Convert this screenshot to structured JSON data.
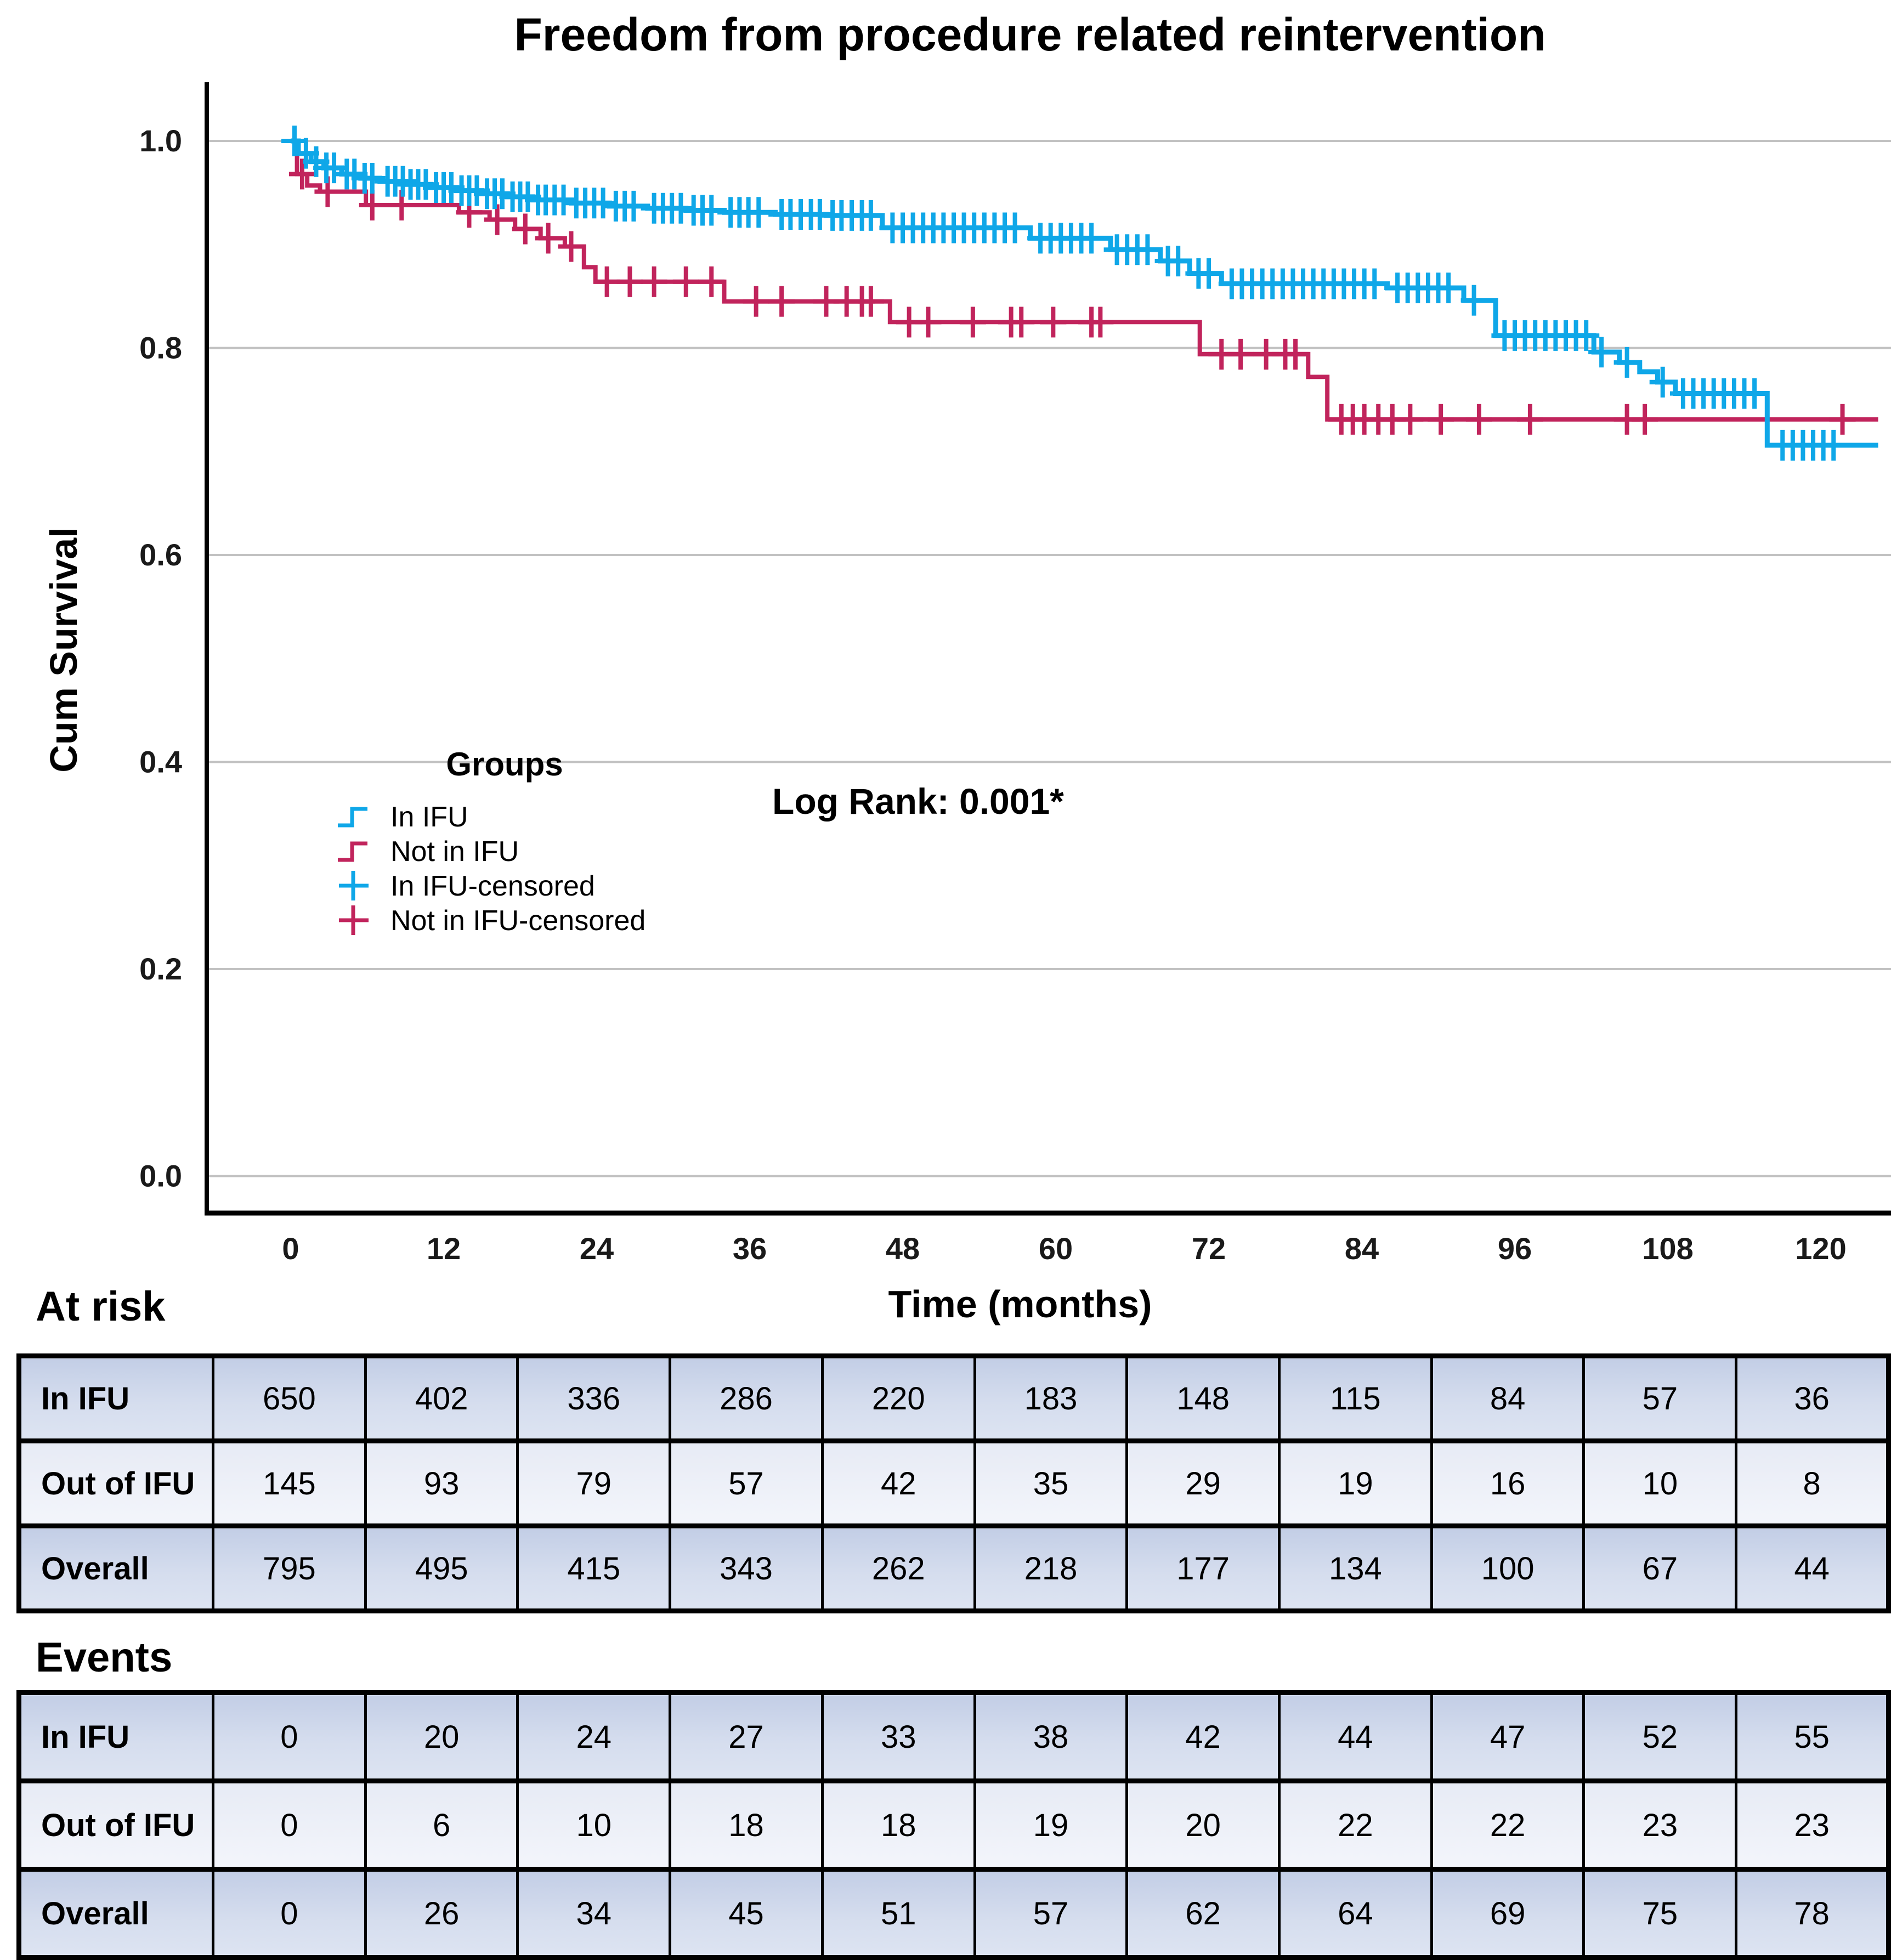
{
  "chart_data": {
    "type": "line",
    "subtype": "kaplan-meier-step",
    "title": "Freedom from procedure related reintervention",
    "xlabel": "Time (months)",
    "ylabel": "Cum Survival",
    "annotation": "Log Rank: 0.001*",
    "legend_title": "Groups",
    "x_ticks": [
      0,
      12,
      24,
      36,
      48,
      60,
      72,
      84,
      96,
      108,
      120
    ],
    "y_ticks": [
      1.0,
      0.8,
      0.6,
      0.4,
      0.2,
      0.0
    ],
    "xlim": [
      0,
      124.5
    ],
    "ylim": [
      0.0,
      1.0
    ],
    "grid": true,
    "colors": {
      "in_ifu": "#0FA7E8",
      "not_in_ifu": "#C1245C",
      "gridline": "#c2c2c2",
      "axis": "#000000"
    },
    "legend_items": [
      {
        "label": "In IFU",
        "symbol": "step",
        "color": "#0FA7E8"
      },
      {
        "label": "Not in IFU",
        "symbol": "step",
        "color": "#C1245C"
      },
      {
        "label": "In IFU-censored",
        "symbol": "plus",
        "color": "#0FA7E8"
      },
      {
        "label": "Not in IFU-censored",
        "symbol": "plus",
        "color": "#C1245C"
      }
    ],
    "series": [
      {
        "name": "In IFU",
        "color": "#0FA7E8",
        "steps": [
          [
            0,
            1.0
          ],
          [
            0.6,
            0.988
          ],
          [
            1.6,
            0.98
          ],
          [
            2.6,
            0.974
          ],
          [
            4.0,
            0.968
          ],
          [
            5.5,
            0.964
          ],
          [
            7.0,
            0.961
          ],
          [
            9.0,
            0.958
          ],
          [
            11,
            0.955
          ],
          [
            13,
            0.952
          ],
          [
            15,
            0.949
          ],
          [
            17,
            0.946
          ],
          [
            19,
            0.943
          ],
          [
            22,
            0.94
          ],
          [
            25,
            0.937
          ],
          [
            28,
            0.935
          ],
          [
            31,
            0.933
          ],
          [
            34,
            0.931
          ],
          [
            38,
            0.929
          ],
          [
            42,
            0.928
          ],
          [
            46.4,
            0.916
          ],
          [
            58,
            0.906
          ],
          [
            64.3,
            0.895
          ],
          [
            68.2,
            0.884
          ],
          [
            70.5,
            0.872
          ],
          [
            73,
            0.862
          ],
          [
            86,
            0.858
          ],
          [
            92,
            0.846
          ],
          [
            94.5,
            0.812
          ],
          [
            102.2,
            0.796
          ],
          [
            104.2,
            0.786
          ],
          [
            105.8,
            0.777
          ],
          [
            107.2,
            0.767
          ],
          [
            108.6,
            0.756
          ],
          [
            115.8,
            0.706
          ]
        ],
        "end_time": 124.5,
        "censors": [
          0.3,
          1.2,
          2.0,
          2.8,
          3.4,
          4.4,
          5.0,
          5.8,
          6.4,
          7.6,
          8.2,
          8.8,
          9.4,
          10.0,
          10.6,
          11.4,
          12.0,
          12.6,
          13.4,
          14.0,
          14.6,
          15.4,
          16.0,
          16.6,
          17.4,
          18.0,
          18.6,
          19.4,
          20.0,
          20.7,
          21.4,
          22.4,
          23.1,
          23.8,
          24.5,
          25.5,
          26.2,
          26.9,
          28.5,
          29.2,
          29.9,
          30.6,
          31.6,
          32.3,
          33.0,
          34.5,
          35.2,
          35.9,
          36.7,
          38.5,
          39.2,
          40.0,
          40.8,
          41.5,
          42.5,
          43.2,
          44.0,
          44.8,
          45.5,
          47.2,
          48.0,
          48.8,
          49.6,
          50.4,
          51.2,
          52.0,
          52.8,
          53.6,
          54.4,
          55.2,
          56.0,
          56.8,
          58.8,
          59.6,
          60.4,
          61.2,
          62.0,
          62.8,
          64.8,
          65.6,
          66.4,
          67.2,
          68.8,
          69.6,
          71.2,
          72.0,
          73.8,
          74.6,
          75.4,
          76.2,
          77.0,
          77.8,
          78.6,
          79.4,
          80.2,
          81.0,
          81.8,
          82.6,
          83.4,
          84.2,
          85.0,
          86.8,
          87.6,
          88.4,
          89.2,
          90.0,
          90.8,
          92.8,
          95.2,
          96.0,
          96.8,
          97.6,
          98.4,
          99.2,
          100.0,
          100.8,
          101.6,
          102.8,
          104.8,
          107.6,
          109.2,
          110.0,
          110.8,
          111.6,
          112.4,
          113.2,
          114.0,
          114.8,
          117.0,
          117.8,
          118.6,
          119.4,
          120.2,
          121.0
        ]
      },
      {
        "name": "Not in IFU",
        "color": "#C1245C",
        "steps": [
          [
            0,
            1.0
          ],
          [
            0.5,
            0.968
          ],
          [
            1.3,
            0.957
          ],
          [
            2.3,
            0.951
          ],
          [
            5.9,
            0.938
          ],
          [
            13.2,
            0.931
          ],
          [
            15.6,
            0.924
          ],
          [
            17.6,
            0.915
          ],
          [
            19.6,
            0.906
          ],
          [
            21.5,
            0.898
          ],
          [
            23.0,
            0.878
          ],
          [
            23.9,
            0.864
          ],
          [
            34.0,
            0.845
          ],
          [
            47.0,
            0.825
          ],
          [
            71.3,
            0.794
          ],
          [
            79.8,
            0.772
          ],
          [
            81.3,
            0.731
          ]
        ],
        "end_time": 124.5,
        "censors": [
          0.9,
          2.9,
          6.4,
          8.7,
          14.0,
          16.2,
          18.4,
          20.2,
          22.0,
          24.8,
          26.6,
          28.5,
          31.0,
          33.0,
          36.5,
          38.5,
          42.0,
          43.6,
          44.8,
          45.5,
          48.5,
          50.0,
          53.5,
          56.5,
          57.3,
          59.8,
          62.8,
          63.5,
          73.0,
          74.5,
          76.5,
          78.0,
          78.8,
          82.4,
          83.3,
          84.2,
          85.3,
          86.4,
          87.8,
          90.2,
          93.2,
          97.2,
          104.8,
          106.2,
          121.7
        ]
      }
    ]
  },
  "at_risk": {
    "heading": "At risk",
    "rows": [
      {
        "label": "In IFU",
        "values": [
          650,
          402,
          336,
          286,
          220,
          183,
          148,
          115,
          84,
          57,
          36
        ]
      },
      {
        "label": "Out of IFU",
        "values": [
          145,
          93,
          79,
          57,
          42,
          35,
          29,
          19,
          16,
          10,
          8
        ]
      },
      {
        "label": "Overall",
        "values": [
          795,
          495,
          415,
          343,
          262,
          218,
          177,
          134,
          100,
          67,
          44
        ]
      }
    ]
  },
  "events": {
    "heading": "Events",
    "rows": [
      {
        "label": "In IFU",
        "values": [
          0,
          20,
          24,
          27,
          33,
          38,
          42,
          44,
          47,
          52,
          55
        ]
      },
      {
        "label": "Out of IFU",
        "values": [
          0,
          6,
          10,
          18,
          18,
          19,
          20,
          22,
          22,
          23,
          23
        ]
      },
      {
        "label": "Overall",
        "values": [
          0,
          26,
          34,
          45,
          51,
          57,
          62,
          64,
          69,
          75,
          78
        ]
      }
    ]
  }
}
